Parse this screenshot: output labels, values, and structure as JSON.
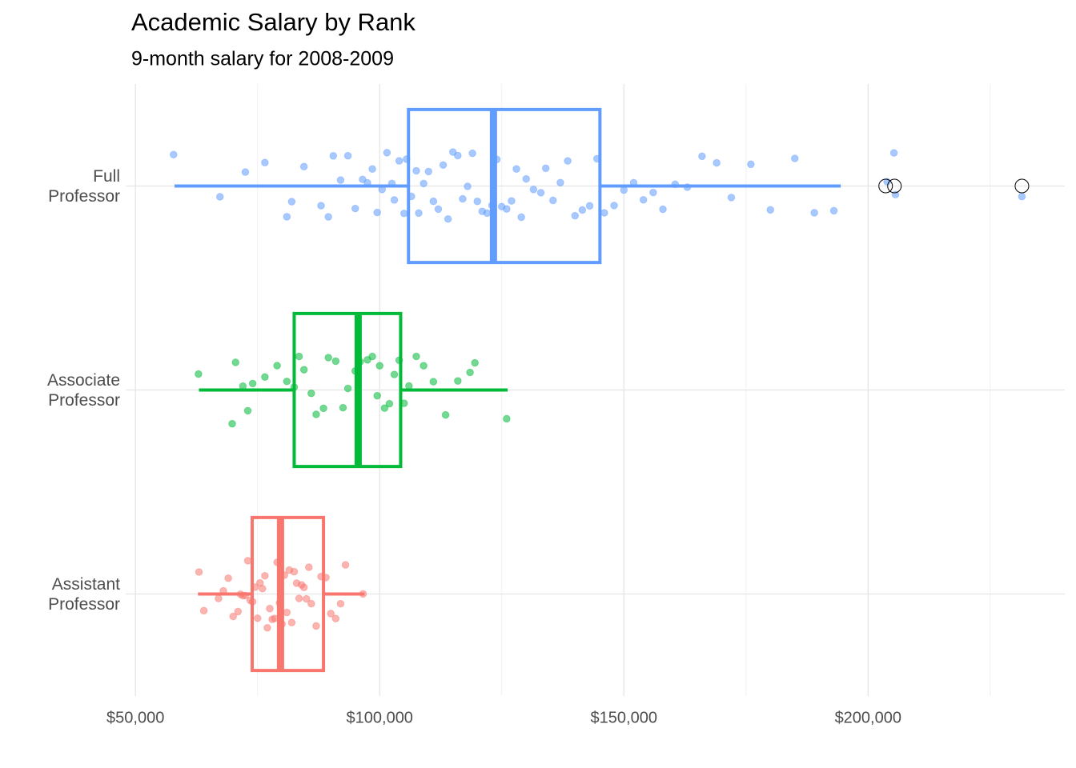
{
  "chart_data": {
    "type": "boxplot",
    "title": "Academic Salary by Rank",
    "subtitle": "9-month salary for 2008-2009",
    "categories": [
      "Assistant\nProfessor",
      "Associate\nProfessor",
      "Full\nProfessor"
    ],
    "colors": [
      "#F8766D",
      "#00BA38",
      "#619CFF"
    ],
    "boxes": [
      {
        "min": 62800,
        "q1": 73900,
        "median": 79700,
        "q3": 88500,
        "max": 96900,
        "outliers": [],
        "points": [
          63000,
          64000,
          67000,
          68000,
          69000,
          70000,
          71000,
          71500,
          72000,
          72500,
          73000,
          73500,
          74000,
          74500,
          75000,
          75500,
          76000,
          76500,
          77000,
          77500,
          78000,
          78500,
          79000,
          79500,
          80000,
          80500,
          81000,
          81500,
          82000,
          82500,
          83000,
          83500,
          84000,
          84500,
          85000,
          85500,
          86000,
          87000,
          88000,
          89000,
          90000,
          91000,
          92000,
          93000,
          96600
        ]
      },
      {
        "min": 63000,
        "q1": 82500,
        "median": 95600,
        "q3": 104300,
        "max": 126200,
        "outliers": [],
        "points": [
          62900,
          69800,
          70500,
          72000,
          73000,
          74000,
          76500,
          79000,
          81000,
          82500,
          83500,
          84500,
          86000,
          87000,
          88500,
          89500,
          91000,
          92500,
          93500,
          95000,
          96000,
          97500,
          98500,
          99500,
          100000,
          101000,
          102000,
          103000,
          104000,
          105000,
          106000,
          107500,
          109000,
          111000,
          113500,
          116000,
          118500,
          119500,
          126000
        ]
      },
      {
        "min": 58000,
        "q1": 105900,
        "median": 123300,
        "q3": 145100,
        "max": 194400,
        "outliers": [
          203600,
          205400,
          231500
        ],
        "points": [
          57800,
          67300,
          72500,
          76500,
          81000,
          82000,
          84500,
          88000,
          89500,
          90500,
          92000,
          93500,
          95000,
          96500,
          97500,
          98500,
          99500,
          100500,
          101500,
          102500,
          103000,
          104000,
          105000,
          105500,
          106500,
          107500,
          108000,
          109000,
          110000,
          111000,
          112000,
          113000,
          114000,
          115000,
          116000,
          117000,
          118000,
          119000,
          120000,
          121000,
          122000,
          123000,
          124000,
          125000,
          126000,
          127000,
          128000,
          129000,
          130000,
          131500,
          133000,
          134000,
          135500,
          137000,
          138500,
          140000,
          141500,
          143000,
          144500,
          146000,
          148000,
          150000,
          152000,
          154000,
          156000,
          158000,
          160500,
          163000,
          166000,
          169000,
          172000,
          176000,
          180000,
          185000,
          189000,
          193000,
          203900,
          205300,
          205600,
          231500
        ]
      }
    ],
    "xlim": [
      48000,
      237000
    ],
    "xticks": [
      {
        "value": 50000,
        "label": "$50,000"
      },
      {
        "value": 100000,
        "label": "$100,000"
      },
      {
        "value": 150000,
        "label": "$150,000"
      },
      {
        "value": 200000,
        "label": "$200,000"
      }
    ],
    "xminor": [
      75000,
      125000,
      175000,
      225000
    ],
    "grid": true
  }
}
